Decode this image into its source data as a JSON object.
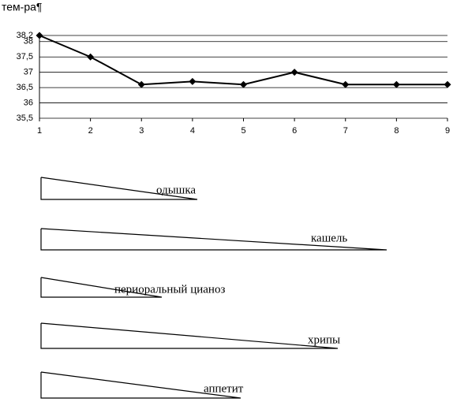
{
  "chart_data": {
    "type": "line",
    "title": "тем-ра¶",
    "x": [
      1,
      2,
      3,
      4,
      5,
      6,
      7,
      8,
      9
    ],
    "values": [
      38.2,
      37.5,
      36.6,
      36.7,
      36.6,
      37.0,
      36.6,
      36.6,
      36.6
    ],
    "color": "#000000",
    "xlim": [
      1,
      9
    ],
    "xticks": [
      1,
      2,
      3,
      4,
      5,
      6,
      7,
      8,
      9
    ],
    "ylim": [
      35.5,
      38.2
    ],
    "yticks": [
      {
        "value": 35.5,
        "label": "35,5"
      },
      36,
      {
        "value": 36.5,
        "label": "36,5"
      },
      37,
      {
        "value": 37.5,
        "label": "37,5"
      },
      38,
      {
        "value": 38.2,
        "label": "38,2"
      }
    ],
    "grid": true
  },
  "symptoms": [
    "одышка",
    "кашель",
    "периоральный цианоз",
    "хрипы",
    "аппетит"
  ]
}
